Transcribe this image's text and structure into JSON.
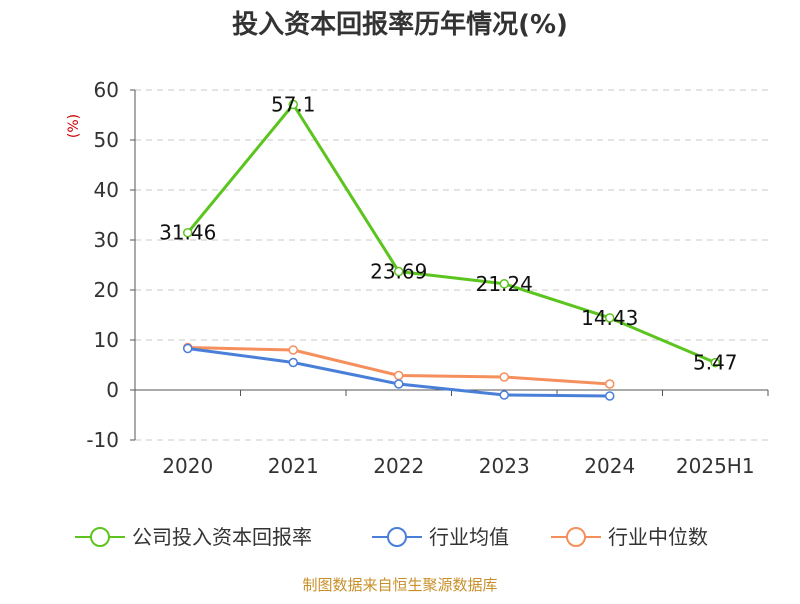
{
  "chart_data": {
    "type": "line",
    "title": "投入资本回报率历年情况(%)",
    "ylabel": "(%)",
    "categories": [
      "2020",
      "2021",
      "2022",
      "2023",
      "2024",
      "2025H1"
    ],
    "yticks": [
      60,
      50,
      40,
      30,
      20,
      10,
      0,
      -10
    ],
    "ylim": [
      -10,
      60
    ],
    "grid": true,
    "legend_position": "bottom",
    "series": [
      {
        "name": "公司投入资本回报率",
        "color": "#5cc41f",
        "values": [
          31.46,
          57.1,
          23.69,
          21.24,
          14.43,
          5.47
        ],
        "labels": [
          "31.46",
          "57.1",
          "23.69",
          "21.24",
          "14.43",
          "5.47"
        ]
      },
      {
        "name": "行业均值",
        "color": "#4a7fd9",
        "values": [
          8.3,
          5.5,
          1.2,
          -1.0,
          -1.2,
          null
        ]
      },
      {
        "name": "行业中位数",
        "color": "#f58f5c",
        "values": [
          8.5,
          8.0,
          2.9,
          2.6,
          1.2,
          null
        ]
      }
    ]
  },
  "source": "制图数据来自恒生聚源数据库"
}
